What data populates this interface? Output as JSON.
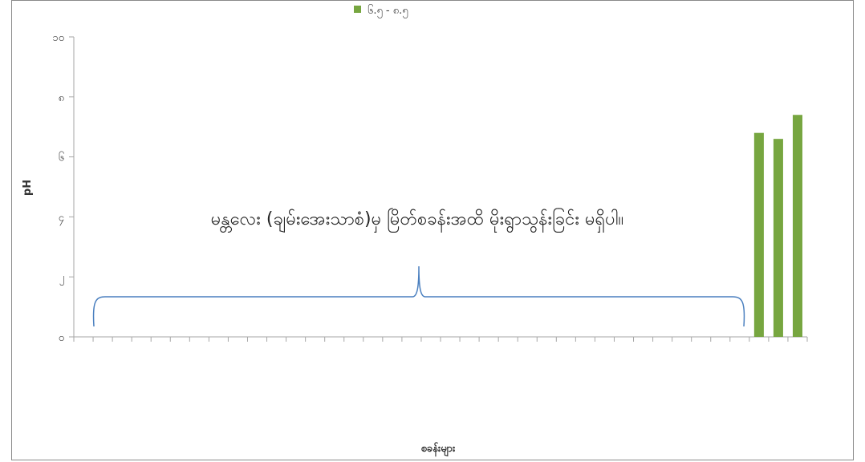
{
  "chart_data": {
    "type": "bar",
    "legend": {
      "label": "၆.၅ - ၈.၅",
      "position": "top"
    },
    "ylabel": "pH",
    "xlabel": "စခန်းများ",
    "ylim": [
      0,
      10
    ],
    "yticks": [
      {
        "value": 0,
        "label": "၀"
      },
      {
        "value": 2,
        "label": "၂"
      },
      {
        "value": 4,
        "label": "၄"
      },
      {
        "value": 6,
        "label": "၆"
      },
      {
        "value": 8,
        "label": "၈"
      },
      {
        "value": 10,
        "label": "၁၀"
      }
    ],
    "categories": [
      "",
      "",
      "",
      "",
      "",
      "",
      "",
      "",
      "",
      "",
      "",
      "",
      "",
      "",
      "",
      "",
      "",
      "",
      "",
      "",
      "",
      "",
      "",
      "",
      "",
      "",
      "",
      "",
      "",
      "",
      "",
      "",
      "",
      "",
      "",
      "",
      "",
      ""
    ],
    "values": [
      null,
      null,
      null,
      null,
      null,
      null,
      null,
      null,
      null,
      null,
      null,
      null,
      null,
      null,
      null,
      null,
      null,
      null,
      null,
      null,
      null,
      null,
      null,
      null,
      null,
      null,
      null,
      null,
      null,
      null,
      null,
      null,
      null,
      null,
      null,
      6.8,
      6.6,
      7.4
    ],
    "annotation": "မန္တလေး (ချမ်းအေးသာစံ)မှ မြိတ်စခန်းအထိ မိုးရွာသွန်းခြင်း မရှိပါ။",
    "colors": {
      "bar": "#77a640",
      "brace": "#4a7fbf",
      "axis": "#a6a6a6"
    }
  }
}
